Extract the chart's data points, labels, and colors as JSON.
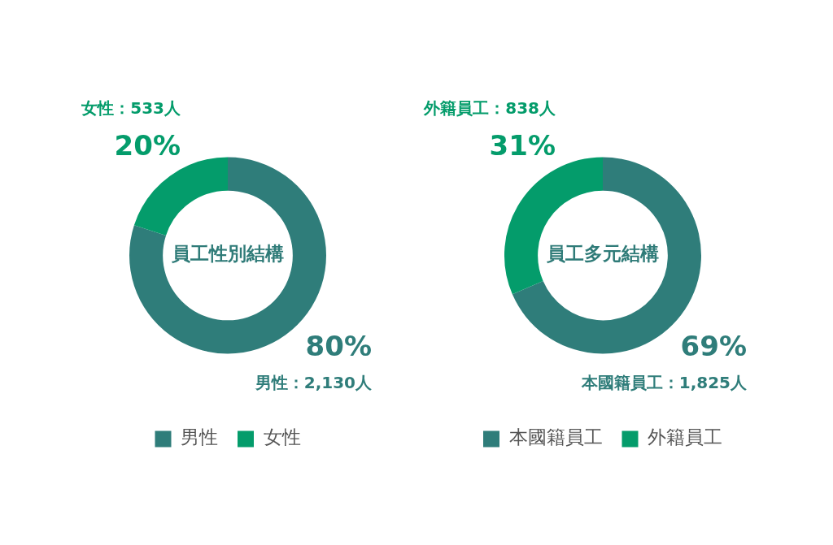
{
  "chart_data": [
    {
      "type": "donut",
      "title": "員工性別結構",
      "categories": [
        "男性",
        "女性"
      ],
      "values": [
        2130,
        533
      ],
      "colors": [
        "#2f7d7a",
        "#049c6b"
      ],
      "value_labels": [
        "男性：2,130人",
        "女性：533人"
      ],
      "annotations": [
        "80%",
        "20%"
      ],
      "legend": "bottom"
    },
    {
      "type": "donut",
      "title": "員工多元結構",
      "categories": [
        "本國籍員工",
        "外籍員工"
      ],
      "values": [
        1825,
        838
      ],
      "colors": [
        "#2f7d7a",
        "#049c6b"
      ],
      "value_labels": [
        "本國籍員工：1,825人",
        "外籍員工：838人"
      ],
      "annotations": [
        "69%",
        "31%"
      ],
      "legend": "bottom"
    }
  ]
}
